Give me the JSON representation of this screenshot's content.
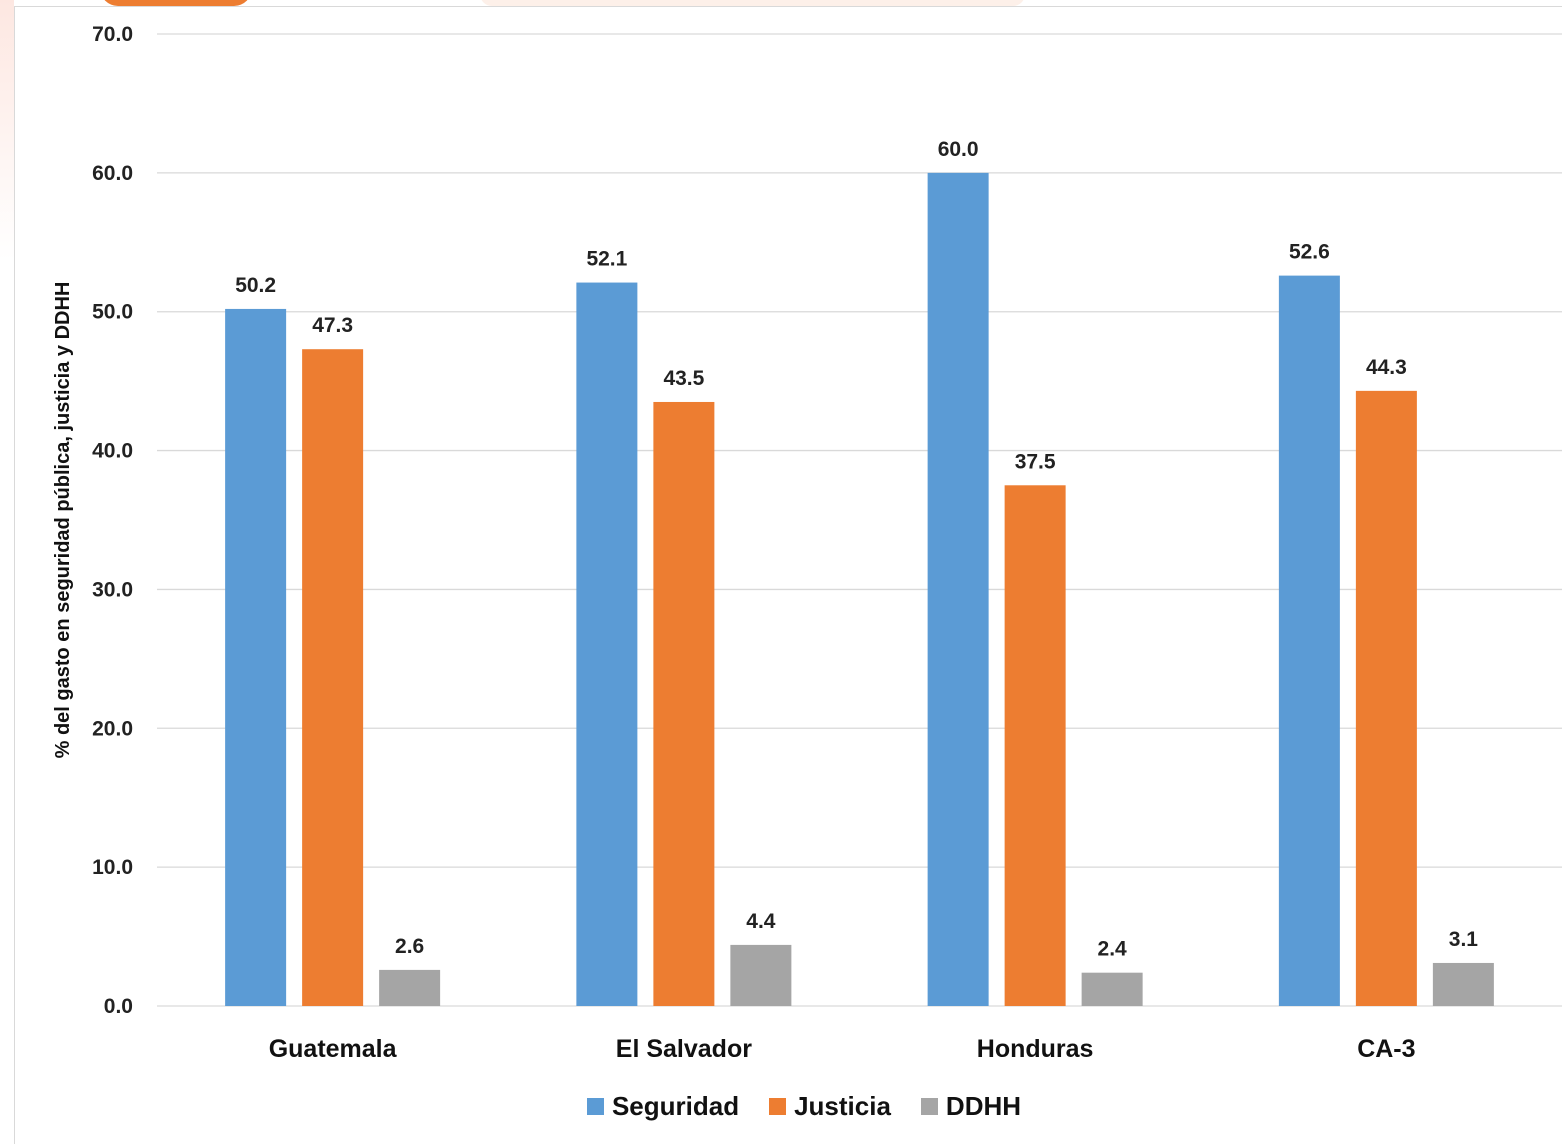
{
  "chart_data": {
    "type": "bar",
    "ylabel": "% del gasto en seguridad pública, justicia y DDHH",
    "categories": [
      "Guatemala",
      "El Salvador",
      "Honduras",
      "CA-3"
    ],
    "ylim": [
      0,
      70
    ],
    "yticks": [
      "0.0",
      "10.0",
      "20.0",
      "30.0",
      "40.0",
      "50.0",
      "60.0",
      "70.0"
    ],
    "grid": true,
    "legend_position": "bottom",
    "series": [
      {
        "name": "Seguridad",
        "color": "#5b9bd5",
        "values": [
          50.2,
          52.1,
          60.0,
          52.6
        ],
        "labels": [
          "50.2",
          "52.1",
          "60.0",
          "52.6"
        ]
      },
      {
        "name": "Justicia",
        "color": "#ed7d31",
        "values": [
          47.3,
          43.5,
          37.5,
          44.3
        ],
        "labels": [
          "47.3",
          "43.5",
          "37.5",
          "44.3"
        ]
      },
      {
        "name": "DDHH",
        "color": "#a5a5a5",
        "values": [
          2.6,
          4.4,
          2.4,
          3.1
        ],
        "labels": [
          "2.6",
          "4.4",
          "2.4",
          "3.1"
        ]
      }
    ]
  }
}
